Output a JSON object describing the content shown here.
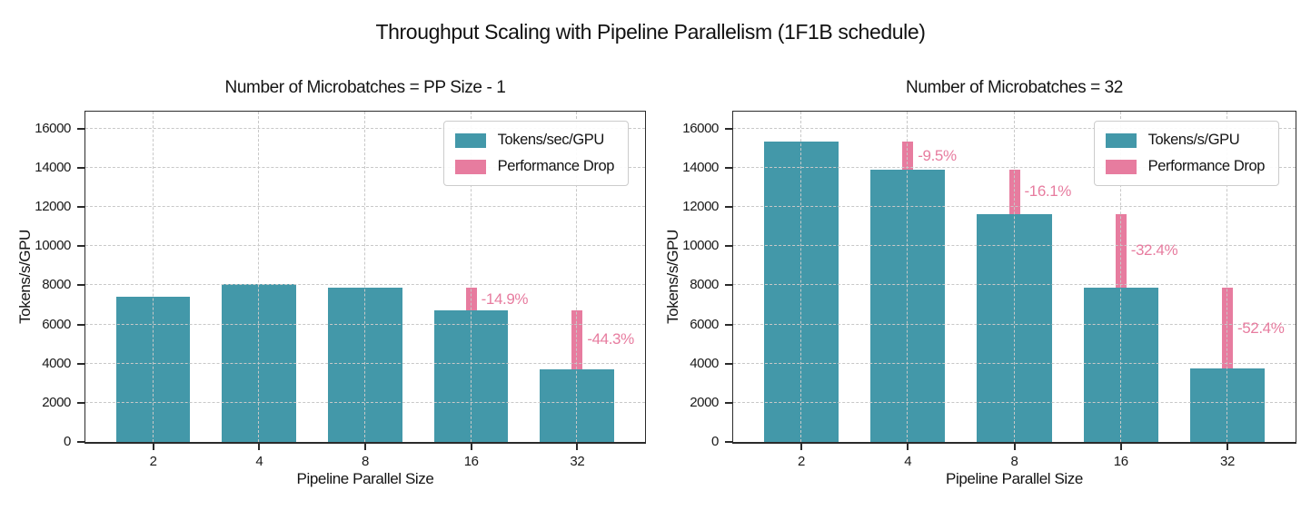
{
  "figure_title": "Throughput Scaling with Pipeline Parallelism (1F1B schedule)",
  "colors": {
    "bar": "#4398a9",
    "drop": "#e77c9f",
    "grid": "#c8c8c8",
    "axis": "#2b2b2b"
  },
  "chart_data": [
    {
      "type": "bar",
      "title": "Number of Microbatches = PP Size - 1",
      "xlabel": "Pipeline Parallel Size",
      "ylabel": "Tokens/s/GPU",
      "categories": [
        "2",
        "4",
        "8",
        "16",
        "32"
      ],
      "values": [
        7430,
        8080,
        7870,
        6700,
        3730
      ],
      "performance_drop_pct": [
        null,
        null,
        null,
        -14.9,
        -44.3
      ],
      "drop_labels": [
        "",
        "",
        "",
        "-14.9%",
        "-44.3%"
      ],
      "legend": [
        "Tokens/sec/GPU",
        "Performance Drop"
      ],
      "legend_position": "upper right",
      "grid": true,
      "ylim": [
        0,
        16870
      ],
      "yticks": [
        0,
        2000,
        4000,
        6000,
        8000,
        10000,
        12000,
        14000,
        16000
      ]
    },
    {
      "type": "bar",
      "title": "Number of Microbatches = 32",
      "xlabel": "Pipeline Parallel Size",
      "ylabel": "Tokens/s/GPU",
      "categories": [
        "2",
        "4",
        "8",
        "16",
        "32"
      ],
      "values": [
        15350,
        13890,
        11650,
        7880,
        3750
      ],
      "performance_drop_pct": [
        null,
        -9.5,
        -16.1,
        -32.4,
        -52.4
      ],
      "drop_labels": [
        "",
        "-9.5%",
        "-16.1%",
        "-32.4%",
        "-52.4%"
      ],
      "legend": [
        "Tokens/s/GPU",
        "Performance Drop"
      ],
      "legend_position": "upper right",
      "grid": true,
      "ylim": [
        0,
        16870
      ],
      "yticks": [
        0,
        2000,
        4000,
        6000,
        8000,
        10000,
        12000,
        14000,
        16000
      ]
    }
  ]
}
